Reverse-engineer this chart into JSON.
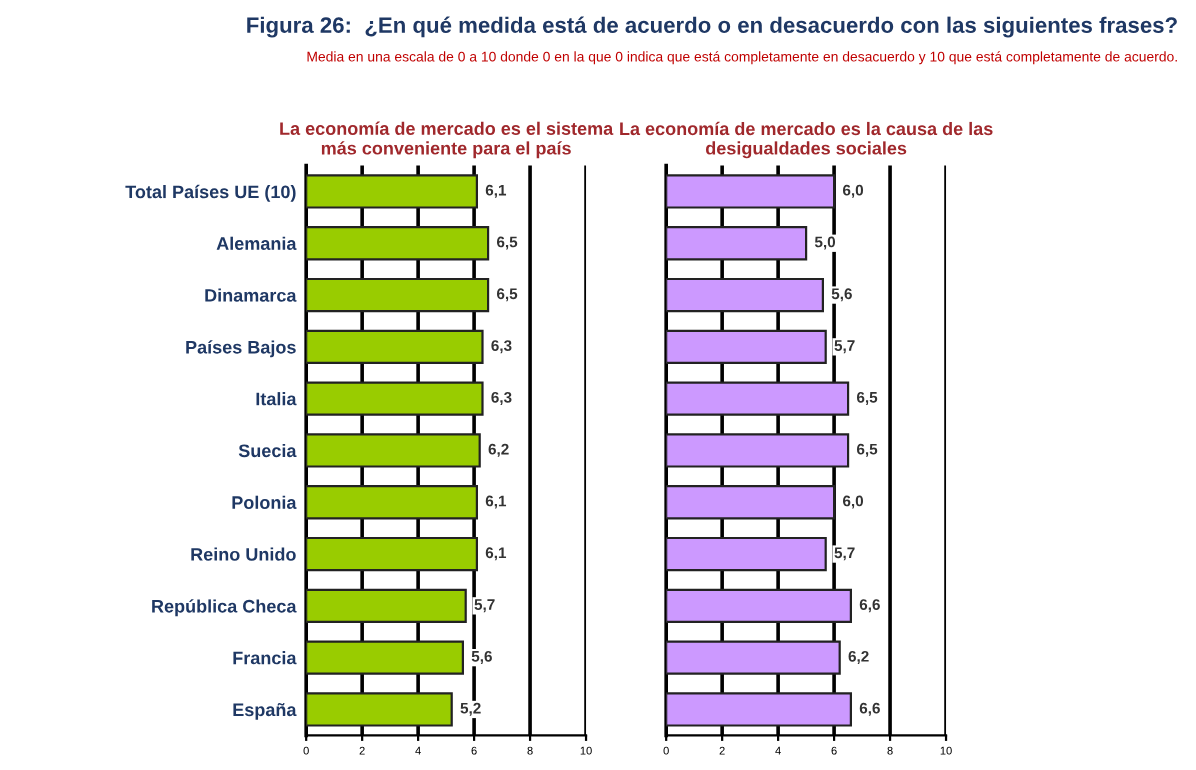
{
  "chart_data": [
    {
      "type": "bar",
      "orientation": "horizontal",
      "title": "Figura 26:  ¿En qué medida está de acuerdo o en desacuerdo con las siguientes frases?",
      "subtitle": "Media en una escala de 0 a 10 donde 0 en la que 0 indica que está completamente en desacuerdo y 10 que está completamente de acuerdo.",
      "xlabel": "La economía de mercado es el sistema\nmás conveniente para el país",
      "categories": [
        "Total Países UE (10)",
        "Alemania",
        "Dinamarca",
        "Países Bajos",
        "Italia",
        "Suecia",
        "Polonia",
        "Reino Unido",
        "República Checa",
        "Francia",
        "España"
      ],
      "series": [
        {
          "color": "#99cc00",
          "values": [
            6.1,
            6.5,
            6.5,
            6.3,
            6.3,
            6.2,
            6.1,
            6.1,
            5.7,
            5.6,
            5.2
          ],
          "value_labels": [
            "6,1",
            "6,5",
            "6,5",
            "6,3",
            "6,3",
            "6,2",
            "6,1",
            "6,1",
            "5,7",
            "5,6",
            "5,2"
          ]
        }
      ],
      "xlim": [
        0,
        10
      ],
      "xticks": [
        0,
        2,
        4,
        6,
        8,
        10
      ],
      "grid": "x"
    },
    {
      "type": "bar",
      "orientation": "horizontal",
      "xlabel": "La economía de mercado es la causa de las\ndesigualdades sociales",
      "categories": [
        null,
        null,
        null,
        null,
        null,
        null,
        null,
        null,
        null,
        null,
        null
      ],
      "series": [
        {
          "color": "#cc99ff",
          "values": [
            6.0,
            5.0,
            5.6,
            5.7,
            6.5,
            6.5,
            6.0,
            5.7,
            6.6,
            6.2,
            6.6
          ],
          "value_labels": [
            "6,0",
            "5,0",
            "5,6",
            "5,7",
            "6,5",
            "6,5",
            "6,0",
            "5,7",
            "6,6",
            "6,2",
            "6,6"
          ]
        }
      ],
      "xlim": [
        0,
        10
      ],
      "xticks": [
        0,
        2,
        4,
        6,
        8,
        10
      ],
      "grid": "x",
      "tick_labels": "x"
    }
  ]
}
